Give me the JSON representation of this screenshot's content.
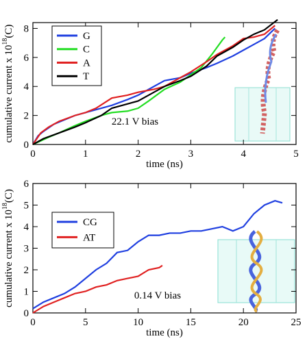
{
  "chart_data": [
    {
      "type": "line",
      "y_label": "cumulative current x 10",
      "y_label_exponent": "18",
      "y_label_unit": "(C)",
      "x_label": "time (ns)",
      "annotation": "22.1 V bias",
      "xlim": [
        0,
        5
      ],
      "xticks": [
        0,
        1,
        2,
        3,
        4,
        5
      ],
      "ylim": [
        0,
        8.4
      ],
      "yticks": [
        0,
        2,
        4,
        6,
        8
      ],
      "series": [
        {
          "name": "G",
          "color": "#1f3fe0",
          "x": [
            0,
            0.1,
            0.2,
            0.4,
            0.6,
            0.8,
            1,
            1.3,
            1.5,
            1.8,
            2,
            2.3,
            2.5,
            2.8,
            3,
            3.3,
            3.5,
            3.8,
            4,
            4.2,
            4.4,
            4.6
          ],
          "values": [
            0,
            0.6,
            0.9,
            1.4,
            1.7,
            2.0,
            2.2,
            2.5,
            2.7,
            3.1,
            3.4,
            4.0,
            4.4,
            4.6,
            4.9,
            5.3,
            5.6,
            6.1,
            6.5,
            6.9,
            7.3,
            8.0
          ]
        },
        {
          "name": "C",
          "color": "#22dd22",
          "x": [
            0,
            0.3,
            0.5,
            0.8,
            1,
            1.3,
            1.5,
            1.8,
            2,
            2.2,
            2.5,
            2.8,
            3,
            3.2,
            3.4,
            3.6,
            3.65
          ],
          "values": [
            0,
            0.5,
            0.8,
            1.3,
            1.6,
            2.0,
            2.2,
            2.3,
            2.5,
            3.0,
            3.8,
            4.3,
            4.8,
            5.3,
            6.2,
            7.2,
            7.4
          ]
        },
        {
          "name": "A",
          "color": "#e02020",
          "x": [
            0,
            0.15,
            0.3,
            0.5,
            0.8,
            1,
            1.2,
            1.5,
            1.8,
            2,
            2.3,
            2.5,
            2.8,
            3,
            3.3,
            3.5,
            3.8,
            4,
            4.2,
            4.4,
            4.6
          ],
          "values": [
            0,
            0.8,
            1.2,
            1.6,
            2.0,
            2.2,
            2.5,
            3.2,
            3.4,
            3.6,
            3.8,
            4.0,
            4.6,
            5.0,
            5.7,
            6.2,
            6.8,
            7.3,
            7.4,
            7.6,
            8.2
          ]
        },
        {
          "name": "T",
          "color": "#000000",
          "x": [
            0,
            0.2,
            0.5,
            0.8,
            1,
            1.3,
            1.5,
            1.8,
            2,
            2.3,
            2.5,
            2.8,
            3,
            3.3,
            3.5,
            3.8,
            4,
            4.2,
            4.4,
            4.65
          ],
          "values": [
            0,
            0.4,
            0.8,
            1.2,
            1.5,
            2.0,
            2.5,
            2.8,
            3.0,
            3.6,
            4.0,
            4.4,
            4.7,
            5.4,
            6.1,
            6.7,
            7.2,
            7.6,
            7.9,
            8.6
          ]
        }
      ]
    },
    {
      "type": "line",
      "y_label": "cumulative current x 10",
      "y_label_exponent": "18",
      "y_label_unit": "(C)",
      "x_label": "time (ns)",
      "annotation": "0.14 V bias",
      "xlim": [
        0,
        25
      ],
      "xticks": [
        0,
        5,
        10,
        15,
        20,
        25
      ],
      "ylim": [
        0,
        6
      ],
      "yticks": [
        0,
        1,
        2,
        3,
        4,
        5,
        6
      ],
      "series": [
        {
          "name": "CG",
          "color": "#1f3fe0",
          "x": [
            0,
            1,
            2,
            3,
            4,
            5,
            6,
            7,
            8,
            9,
            10,
            11,
            12,
            13,
            14,
            15,
            16,
            17,
            18,
            19,
            20,
            21,
            22,
            23,
            23.7
          ],
          "values": [
            0.2,
            0.5,
            0.7,
            0.9,
            1.2,
            1.6,
            2.0,
            2.3,
            2.8,
            2.9,
            3.3,
            3.6,
            3.6,
            3.7,
            3.7,
            3.8,
            3.8,
            3.9,
            4.0,
            3.8,
            4.0,
            4.6,
            5.0,
            5.2,
            5.1
          ]
        },
        {
          "name": "AT",
          "color": "#e02020",
          "x": [
            0,
            1,
            2,
            3,
            4,
            5,
            6,
            7,
            8,
            9,
            10,
            11,
            12,
            12.3
          ],
          "values": [
            0,
            0.3,
            0.5,
            0.7,
            0.9,
            1.0,
            1.2,
            1.3,
            1.5,
            1.6,
            1.7,
            2.0,
            2.1,
            2.2
          ]
        }
      ]
    }
  ]
}
